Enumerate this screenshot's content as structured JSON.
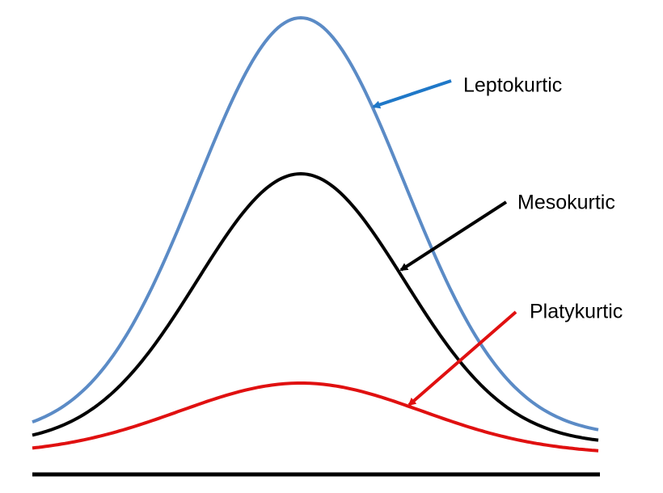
{
  "labels": [
    "Leptokurtic",
    "Mesokurtic",
    "Platykurtic"
  ]
}
